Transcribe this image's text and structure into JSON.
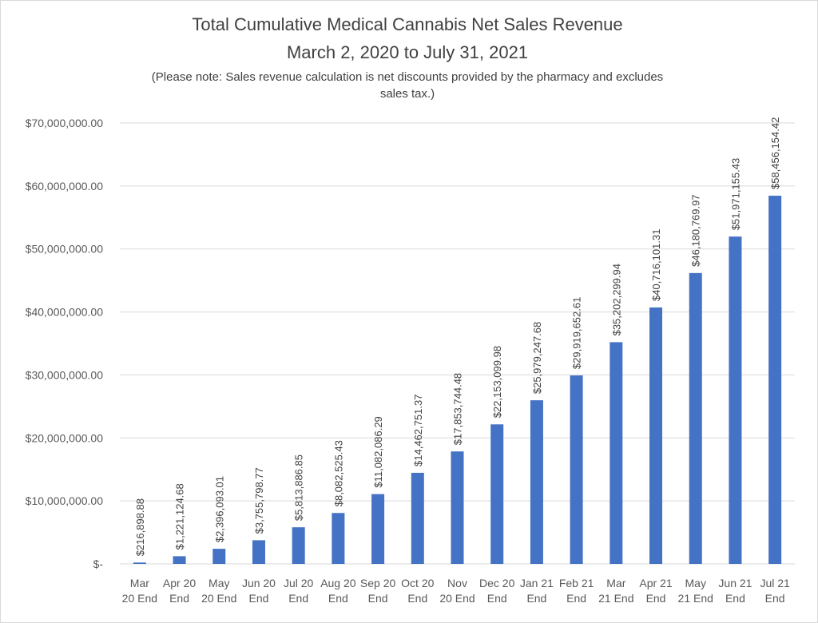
{
  "chart_data": {
    "type": "bar",
    "title": "Total Cumulative Medical Cannabis Net Sales Revenue",
    "subtitle": "March 2, 2020 to July 31, 2021",
    "note_lines": [
      "(Please note: Sales revenue calculation is net discounts provided by the pharmacy and excludes",
      "sales tax.)"
    ],
    "categories": [
      [
        "Mar",
        "20 End"
      ],
      [
        "Apr 20",
        "End"
      ],
      [
        "May",
        "20 End"
      ],
      [
        "Jun 20",
        "End"
      ],
      [
        "Jul 20",
        "End"
      ],
      [
        "Aug 20",
        "End"
      ],
      [
        "Sep 20",
        "End"
      ],
      [
        "Oct 20",
        "End"
      ],
      [
        "Nov",
        "20 End"
      ],
      [
        "Dec 20",
        "End"
      ],
      [
        "Jan 21",
        "End"
      ],
      [
        "Feb 21",
        "End"
      ],
      [
        "Mar",
        "21 End"
      ],
      [
        "Apr 21",
        "End"
      ],
      [
        "May",
        "21 End"
      ],
      [
        "Jun 21",
        "End"
      ],
      [
        "Jul 21",
        "End"
      ]
    ],
    "values": [
      216898.88,
      1221124.68,
      2396093.01,
      3755798.77,
      5813886.85,
      8082525.43,
      11082086.29,
      14462751.37,
      17853744.48,
      22153099.98,
      25979247.68,
      29919652.61,
      35202299.94,
      40716101.31,
      46180769.97,
      51971155.43,
      58456154.42
    ],
    "data_labels": [
      "$216,898.88",
      "$1,221,124.68",
      "$2,396,093.01",
      "$3,755,798.77",
      "$5,813,886.85",
      "$8,082,525.43",
      "$11,082,086.29",
      "$14,462,751.37",
      "$17,853,744.48",
      "$22,153,099.98",
      "$25,979,247.68",
      "$29,919,652.61",
      "$35,202,299.94",
      "$40,716,101.31",
      "$46,180,769.97",
      "$51,971,155.43",
      "$58,456,154.42"
    ],
    "yticks": [
      0,
      10000000,
      20000000,
      30000000,
      40000000,
      50000000,
      60000000,
      70000000
    ],
    "ytick_labels": [
      "$-",
      "$10,000,000.00",
      "$20,000,000.00",
      "$30,000,000.00",
      "$40,000,000.00",
      "$50,000,000.00",
      "$60,000,000.00",
      "$70,000,000.00"
    ],
    "ylim": [
      0,
      70000000
    ],
    "grid": true,
    "bar_color": "#4472c4"
  }
}
